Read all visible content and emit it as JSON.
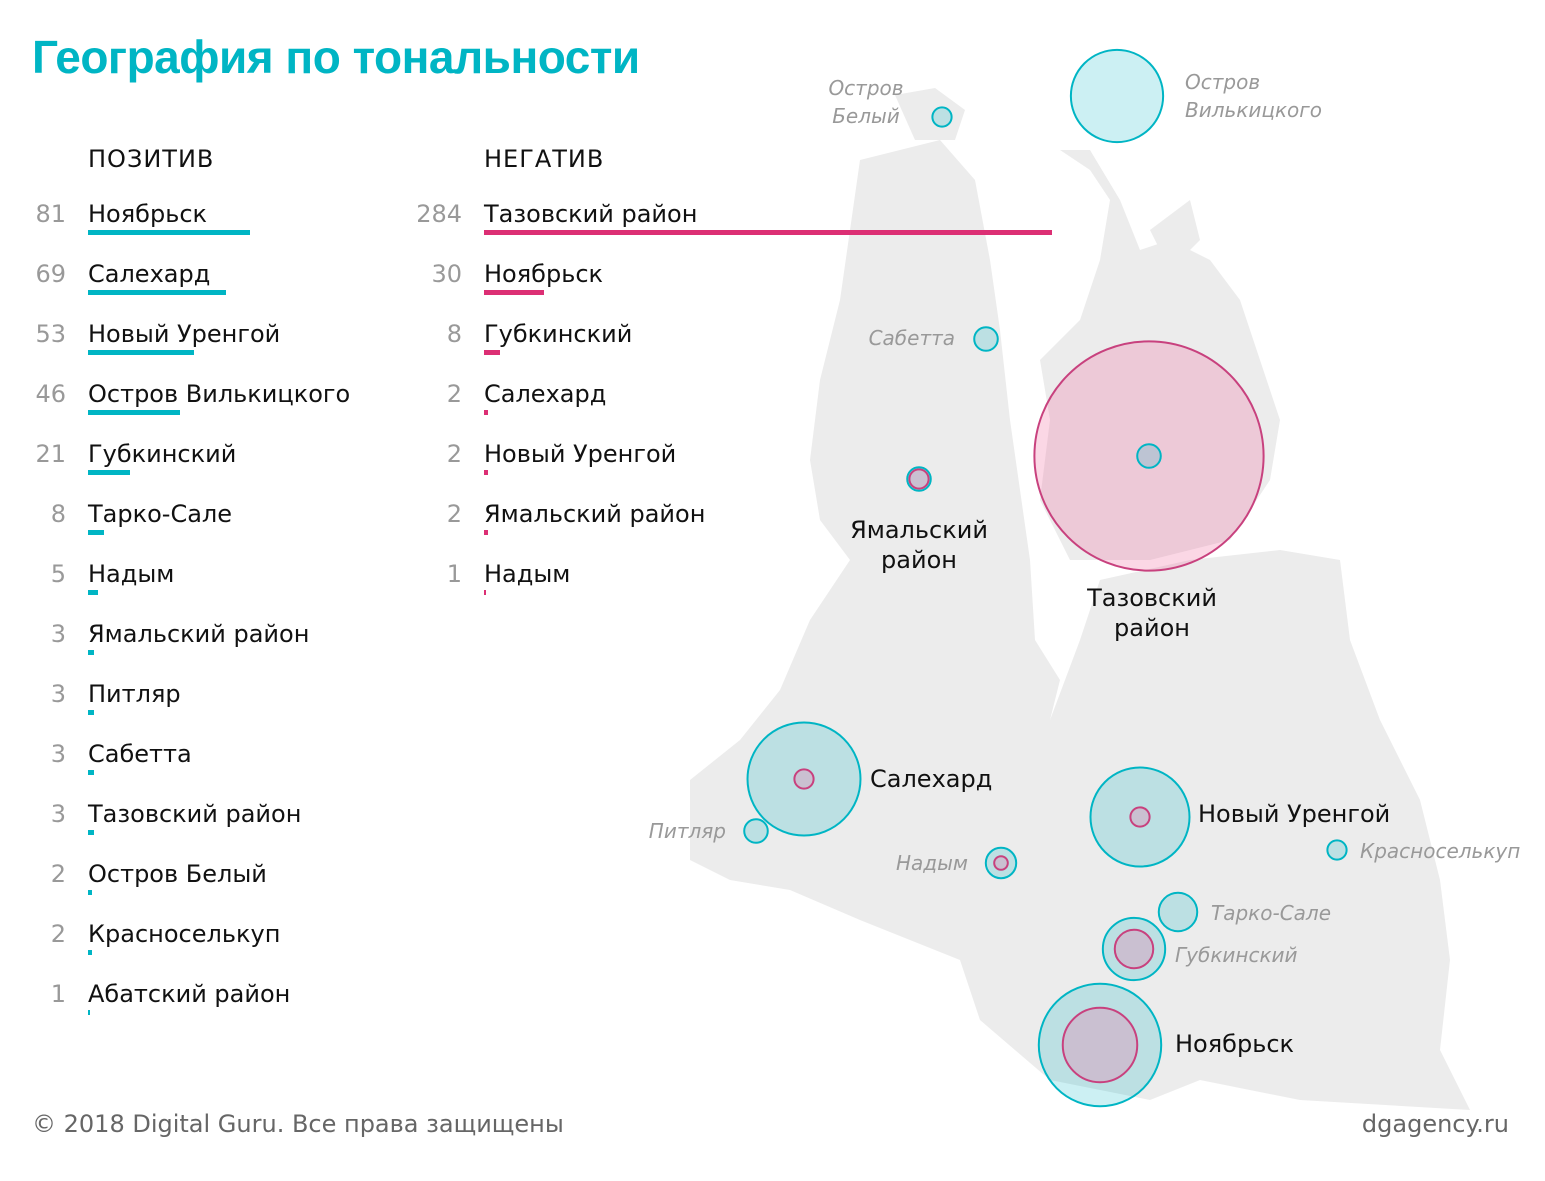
{
  "title": "География по тональности",
  "colors": {
    "positive": "#00b5c4",
    "negative": "#dc2f74",
    "map": "#ececec"
  },
  "chart_data": {
    "type": "bar",
    "title": "География по тональности",
    "positive": {
      "label": "ПОЗИТИВ",
      "items": [
        {
          "name": "Ноябрьск",
          "value": 81
        },
        {
          "name": "Салехард",
          "value": 69
        },
        {
          "name": "Новый Уренгой",
          "value": 53
        },
        {
          "name": "Остров Вилькицкого",
          "value": 46
        },
        {
          "name": "Губкинский",
          "value": 21
        },
        {
          "name": "Тарко-Сале",
          "value": 8
        },
        {
          "name": "Надым",
          "value": 5
        },
        {
          "name": "Ямальский район",
          "value": 3
        },
        {
          "name": "Питляр",
          "value": 3
        },
        {
          "name": "Сабетта",
          "value": 3
        },
        {
          "name": "Тазовский район",
          "value": 3
        },
        {
          "name": "Остров Белый",
          "value": 2
        },
        {
          "name": "Красноселькуп",
          "value": 2
        },
        {
          "name": "Абатский район",
          "value": 1
        }
      ]
    },
    "negative": {
      "label": "НЕГАТИВ",
      "items": [
        {
          "name": "Тазовский район",
          "value": 284
        },
        {
          "name": "Ноябрьск",
          "value": 30
        },
        {
          "name": "Губкинский",
          "value": 8
        },
        {
          "name": "Салехард",
          "value": 2
        },
        {
          "name": "Новый Уренгой",
          "value": 2
        },
        {
          "name": "Ямальский район",
          "value": 2
        },
        {
          "name": "Надым",
          "value": 1
        }
      ]
    },
    "map_labels": [
      {
        "id": "belyi",
        "text": "Остров Белый",
        "lines": [
          "Остров",
          "Белый"
        ]
      },
      {
        "id": "vilk",
        "text": "Остров Вилькицкого",
        "lines": [
          "Остров",
          "Вилькицкого"
        ]
      },
      {
        "id": "sabetta",
        "text": "Сабетта",
        "lines": [
          "Сабетта"
        ]
      },
      {
        "id": "yamal",
        "text": "Ямальский район",
        "lines": [
          "Ямальский",
          "район"
        ]
      },
      {
        "id": "taz",
        "text": "Тазовский район",
        "lines": [
          "Тазовский",
          "район"
        ]
      },
      {
        "id": "salekhard",
        "text": "Салехард",
        "lines": [
          "Салехард"
        ]
      },
      {
        "id": "pitlyar",
        "text": "Питляр",
        "lines": [
          "Питляр"
        ]
      },
      {
        "id": "nadym",
        "text": "Надым",
        "lines": [
          "Надым"
        ]
      },
      {
        "id": "urengoy",
        "text": "Новый Уренгой",
        "lines": [
          "Новый Уренгой"
        ]
      },
      {
        "id": "krasn",
        "text": "Красноселькуп",
        "lines": [
          "Красноселькуп"
        ]
      },
      {
        "id": "tarko",
        "text": "Тарко-Сале",
        "lines": [
          "Тарко-Сале"
        ]
      },
      {
        "id": "gubk",
        "text": "Губкинский",
        "lines": [
          "Губкинский"
        ]
      },
      {
        "id": "noyabr",
        "text": "Ноябрьск",
        "lines": [
          "Ноябрьск"
        ]
      }
    ]
  },
  "footer": {
    "copyright": "© 2018 Digital Guru. Все права защищены",
    "site": "dgagency.ru"
  }
}
